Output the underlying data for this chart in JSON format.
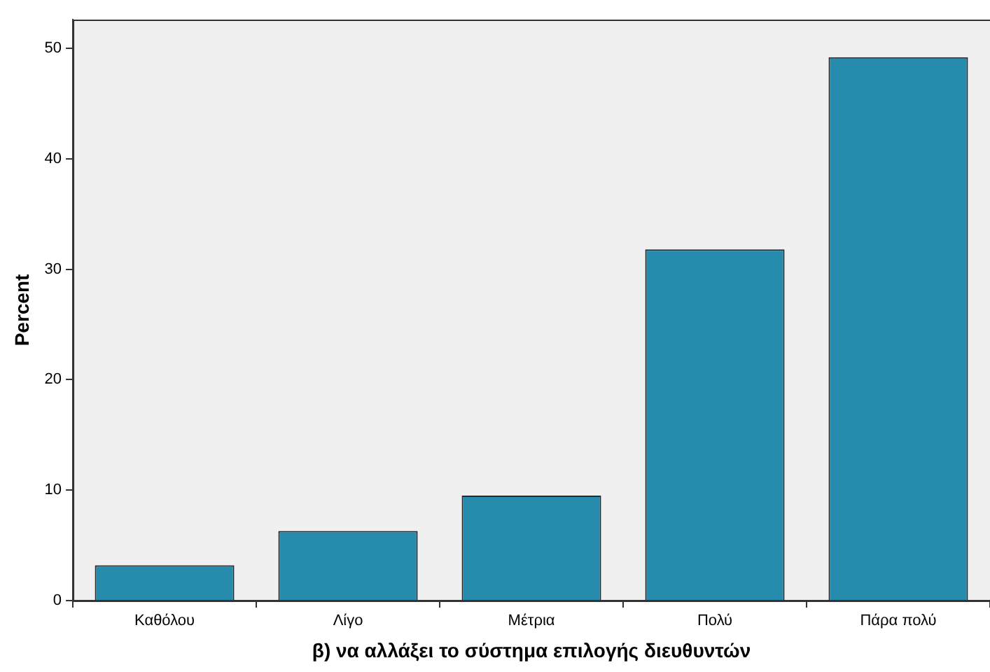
{
  "chart_data": {
    "type": "bar",
    "xlabel": "β) να αλλάξει το σύστημα επιλογής διευθυντών",
    "ylabel": "Percent",
    "categories": [
      "Καθόλου",
      "Λίγο",
      "Μέτρια",
      "Πολύ",
      "Πάρα πολύ"
    ],
    "values": [
      3.2,
      6.3,
      9.5,
      31.8,
      49.2
    ],
    "color": "#268bad",
    "ylim": [
      0,
      52.6
    ],
    "yticks": [
      0,
      10,
      20,
      30,
      40,
      50
    ]
  }
}
